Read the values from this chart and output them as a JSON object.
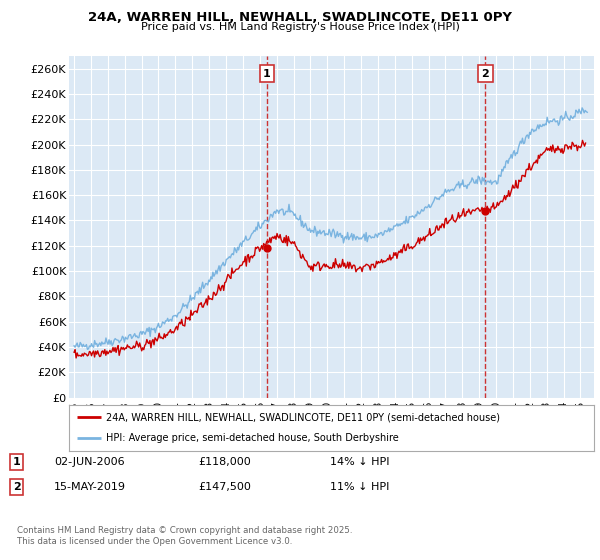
{
  "title": "24A, WARREN HILL, NEWHALL, SWADLINCOTE, DE11 0PY",
  "subtitle": "Price paid vs. HM Land Registry's House Price Index (HPI)",
  "ylabel_ticks": [
    "£0",
    "£20K",
    "£40K",
    "£60K",
    "£80K",
    "£100K",
    "£120K",
    "£140K",
    "£160K",
    "£180K",
    "£200K",
    "£220K",
    "£240K",
    "£260K"
  ],
  "ytick_values": [
    0,
    20000,
    40000,
    60000,
    80000,
    100000,
    120000,
    140000,
    160000,
    180000,
    200000,
    220000,
    240000,
    260000
  ],
  "ylim": [
    0,
    270000
  ],
  "background_color": "#dce9f5",
  "grid_color": "#ffffff",
  "hpi_color": "#7ab4e0",
  "price_color": "#cc0000",
  "vline_color": "#cc3333",
  "point1_x": 2006.42,
  "point1_y": 118000,
  "point1_label": "1",
  "point1_date": "02-JUN-2006",
  "point1_price": "£118,000",
  "point1_note": "14% ↓ HPI",
  "point2_x": 2019.37,
  "point2_y": 147500,
  "point2_label": "2",
  "point2_date": "15-MAY-2019",
  "point2_price": "£147,500",
  "point2_note": "11% ↓ HPI",
  "legend_line1": "24A, WARREN HILL, NEWHALL, SWADLINCOTE, DE11 0PY (semi-detached house)",
  "legend_line2": "HPI: Average price, semi-detached house, South Derbyshire",
  "footer": "Contains HM Land Registry data © Crown copyright and database right 2025.\nThis data is licensed under the Open Government Licence v3.0.",
  "xtick_years": [
    1995,
    1996,
    1997,
    1998,
    1999,
    2000,
    2001,
    2002,
    2003,
    2004,
    2005,
    2006,
    2007,
    2008,
    2009,
    2010,
    2011,
    2012,
    2013,
    2014,
    2015,
    2016,
    2017,
    2018,
    2019,
    2020,
    2021,
    2022,
    2023,
    2024,
    2025
  ]
}
